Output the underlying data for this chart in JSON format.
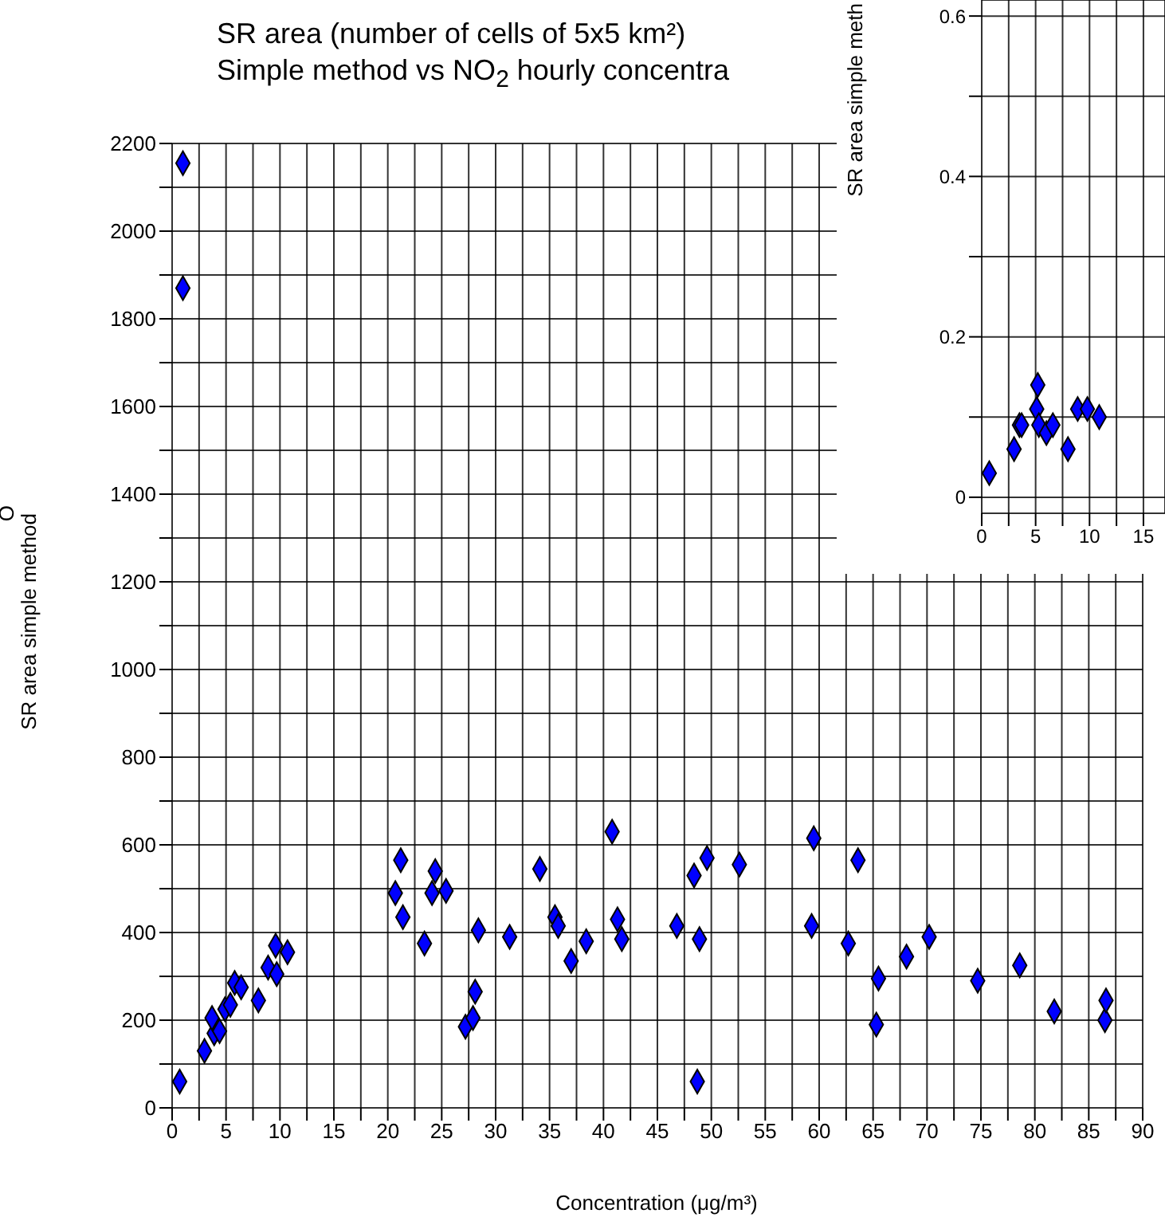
{
  "chart_data": [
    {
      "type": "scatter",
      "title": "SR area (number of cells of 5x5 km²)",
      "subtitle": "Simple method vs NO$_{2}$ hourly concentra",
      "xlabel": "Concentration (μg/m³)",
      "ylabel": "SR area simple method",
      "annotations": [
        "O"
      ],
      "marker": "diamond",
      "grid": true,
      "legend": false,
      "xlim": [
        0,
        90
      ],
      "xticks": [
        0,
        {
          "value": 2.5,
          "label": null
        },
        5,
        {
          "value": 7.5,
          "label": null
        },
        10,
        {
          "value": 12.5,
          "label": null
        },
        15,
        {
          "value": 17.5,
          "label": null
        },
        20,
        {
          "value": 22.5,
          "label": null
        },
        25,
        {
          "value": 27.5,
          "label": null
        },
        30,
        {
          "value": 32.5,
          "label": null
        },
        35,
        {
          "value": 37.5,
          "label": null
        },
        40,
        {
          "value": 42.5,
          "label": null
        },
        45,
        {
          "value": 47.5,
          "label": null
        },
        50,
        {
          "value": 52.5,
          "label": null
        },
        55,
        {
          "value": 57.5,
          "label": null
        },
        60,
        {
          "value": 62.5,
          "label": null
        },
        65,
        {
          "value": 67.5,
          "label": null
        },
        70,
        {
          "value": 72.5,
          "label": null
        },
        75,
        {
          "value": 77.5,
          "label": null
        },
        80,
        {
          "value": 82.5,
          "label": null
        },
        85,
        {
          "value": 87.5,
          "label": null
        },
        90
      ],
      "ylim": [
        0,
        2200
      ],
      "yticks": [
        0,
        {
          "value": 100,
          "label": null
        },
        200,
        {
          "value": 300,
          "label": null
        },
        400,
        {
          "value": 500,
          "label": null
        },
        600,
        {
          "value": 700,
          "label": null
        },
        800,
        {
          "value": 900,
          "label": null
        },
        1000,
        {
          "value": 1100,
          "label": null
        },
        1200,
        {
          "value": 1300,
          "label": null
        },
        1400,
        {
          "value": 1500,
          "label": null
        },
        1600,
        {
          "value": 1700,
          "label": null
        },
        1800,
        {
          "value": 1900,
          "label": null
        },
        2000,
        {
          "value": 2100,
          "label": null
        },
        2200
      ],
      "color": "#0000ff",
      "x": [
        1.0,
        1.0,
        0.7,
        3.0,
        3.9,
        4.4,
        3.7,
        4.9,
        5.4,
        5.8,
        6.4,
        8.0,
        8.9,
        9.7,
        9.6,
        10.7,
        20.7,
        21.2,
        21.4,
        23.4,
        24.1,
        24.4,
        25.4,
        27.2,
        27.9,
        28.1,
        28.4,
        31.3,
        34.1,
        35.5,
        35.8,
        37.0,
        38.4,
        40.8,
        41.3,
        41.7,
        46.8,
        48.4,
        48.7,
        48.9,
        49.6,
        52.6,
        59.3,
        59.5,
        62.7,
        63.6,
        65.3,
        65.5,
        68.1,
        70.2,
        74.7,
        78.6,
        81.8,
        86.5,
        86.6
      ],
      "values": [
        2155,
        1870,
        60,
        130,
        170,
        175,
        205,
        225,
        235,
        285,
        275,
        245,
        320,
        305,
        370,
        355,
        490,
        565,
        435,
        375,
        490,
        540,
        495,
        185,
        205,
        265,
        405,
        390,
        545,
        435,
        415,
        335,
        380,
        630,
        430,
        385,
        415,
        530,
        60,
        385,
        570,
        555,
        415,
        615,
        375,
        565,
        190,
        295,
        345,
        390,
        290,
        325,
        220,
        200,
        245
      ]
    },
    {
      "type": "scatter",
      "ylabel": "SR area simple meth",
      "marker": "diamond",
      "grid": true,
      "legend": false,
      "xlim": [
        0,
        17
      ],
      "xticks": [
        0,
        {
          "value": 2.5,
          "label": null
        },
        5,
        {
          "value": 7.5,
          "label": null
        },
        10,
        {
          "value": 12.5,
          "label": null
        },
        15
      ],
      "ylim": [
        -0.02,
        0.62
      ],
      "yticks": [
        0,
        {
          "value": 0.1,
          "label": null
        },
        0.2,
        {
          "value": 0.3,
          "label": null
        },
        0.4,
        {
          "value": 0.5,
          "label": null
        },
        0.6
      ],
      "color": "#0000ff",
      "x": [
        0.7,
        3.0,
        3.5,
        3.7,
        5.2,
        5.1,
        5.3,
        6.0,
        6.6,
        8.0,
        8.9,
        9.8,
        10.9
      ],
      "values": [
        0.03,
        0.06,
        0.09,
        0.09,
        0.14,
        0.11,
        0.09,
        0.08,
        0.09,
        0.06,
        0.11,
        0.11,
        0.1
      ]
    }
  ]
}
